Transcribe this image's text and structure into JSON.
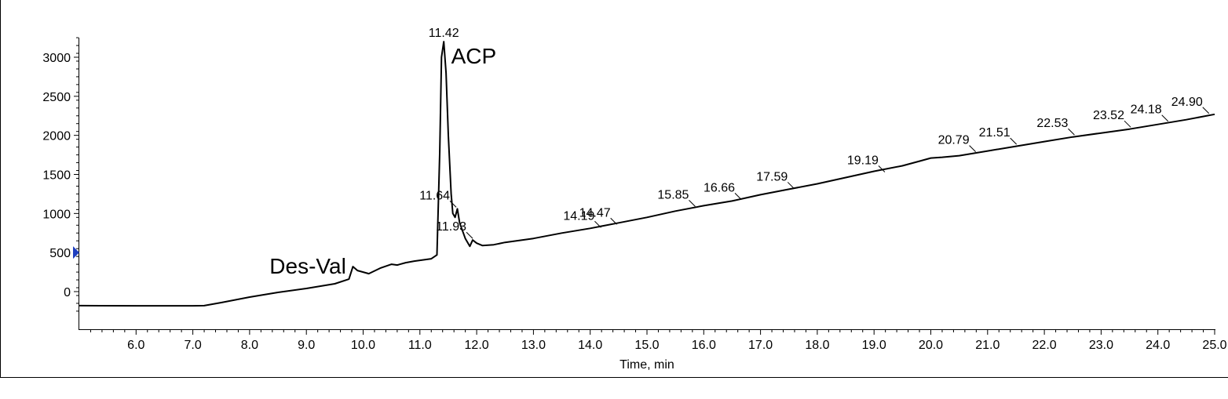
{
  "chart_data": {
    "type": "line",
    "title": "",
    "xlabel": "Time, min",
    "ylabel": "",
    "xlim": [
      5.0,
      25.0
    ],
    "ylim": [
      -450,
      3250
    ],
    "x_ticks": [
      "6.0",
      "7.0",
      "8.0",
      "9.0",
      "10.0",
      "11.0",
      "12.0",
      "13.0",
      "14.0",
      "15.0",
      "16.0",
      "17.0",
      "18.0",
      "19.0",
      "20.0",
      "21.0",
      "22.0",
      "23.0",
      "24.0",
      "25.0"
    ],
    "y_ticks": [
      "0",
      "500",
      "1000",
      "1500",
      "2000",
      "2500",
      "3000"
    ],
    "grid": false,
    "series": [
      {
        "x": [
          5.0,
          6.0,
          7.0,
          7.2,
          7.5,
          8.0,
          8.5,
          9.0,
          9.5,
          9.75,
          9.82,
          9.9,
          10.1,
          10.3,
          10.5,
          10.6,
          10.75,
          10.9,
          11.0,
          11.2,
          11.3,
          11.35,
          11.38,
          11.42,
          11.46,
          11.5,
          11.55,
          11.58,
          11.62,
          11.66,
          11.7,
          11.8,
          11.88,
          11.93,
          12.0,
          12.1,
          12.3,
          12.5,
          12.6,
          13.0,
          13.5,
          14.0,
          14.5,
          15.0,
          15.5,
          16.0,
          16.5,
          17.0,
          17.5,
          18.0,
          18.5,
          19.0,
          19.5,
          19.8,
          20.0,
          20.2,
          20.5,
          21.0,
          21.5,
          22.0,
          22.5,
          23.0,
          23.5,
          24.0,
          24.5,
          25.0
        ],
        "y": [
          -180,
          -182,
          -182,
          -180,
          -140,
          -70,
          -10,
          40,
          100,
          160,
          320,
          270,
          230,
          300,
          350,
          340,
          370,
          390,
          400,
          420,
          470,
          1800,
          3000,
          3200,
          2800,
          2000,
          1250,
          1000,
          950,
          1060,
          880,
          680,
          580,
          660,
          620,
          590,
          600,
          630,
          640,
          680,
          750,
          810,
          880,
          950,
          1030,
          1100,
          1160,
          1240,
          1310,
          1380,
          1460,
          1540,
          1610,
          1670,
          1710,
          1720,
          1740,
          1800,
          1860,
          1920,
          1980,
          2030,
          2080,
          2140,
          2200,
          2270
        ]
      }
    ],
    "peak_labels": [
      {
        "x": 11.42,
        "y": 3200,
        "text": "11.42"
      },
      {
        "x": 11.64,
        "y": 1060,
        "text": "11.64"
      },
      {
        "x": 11.93,
        "y": 660,
        "text": "11.93"
      },
      {
        "x": 14.19,
        "y": 800,
        "text": "14.19"
      },
      {
        "x": 14.47,
        "y": 840,
        "text": "14.47"
      },
      {
        "x": 15.85,
        "y": 1070,
        "text": "15.85"
      },
      {
        "x": 16.66,
        "y": 1160,
        "text": "16.66"
      },
      {
        "x": 17.59,
        "y": 1300,
        "text": "17.59"
      },
      {
        "x": 19.19,
        "y": 1510,
        "text": "19.19"
      },
      {
        "x": 20.79,
        "y": 1770,
        "text": "20.79"
      },
      {
        "x": 21.51,
        "y": 1865,
        "text": "21.51"
      },
      {
        "x": 22.53,
        "y": 1985,
        "text": "22.53"
      },
      {
        "x": 23.52,
        "y": 2085,
        "text": "23.52"
      },
      {
        "x": 24.18,
        "y": 2160,
        "text": "24.18"
      },
      {
        "x": 24.9,
        "y": 2260,
        "text": "24.90"
      }
    ],
    "annotations": [
      {
        "text": "ACP",
        "x": 11.55,
        "y": 3000
      },
      {
        "text": "Des-Val",
        "x": 9.7,
        "y": 330
      }
    ],
    "marker_value": 500,
    "colors": {
      "line": "#000000",
      "marker": "#1f3fbf"
    }
  }
}
